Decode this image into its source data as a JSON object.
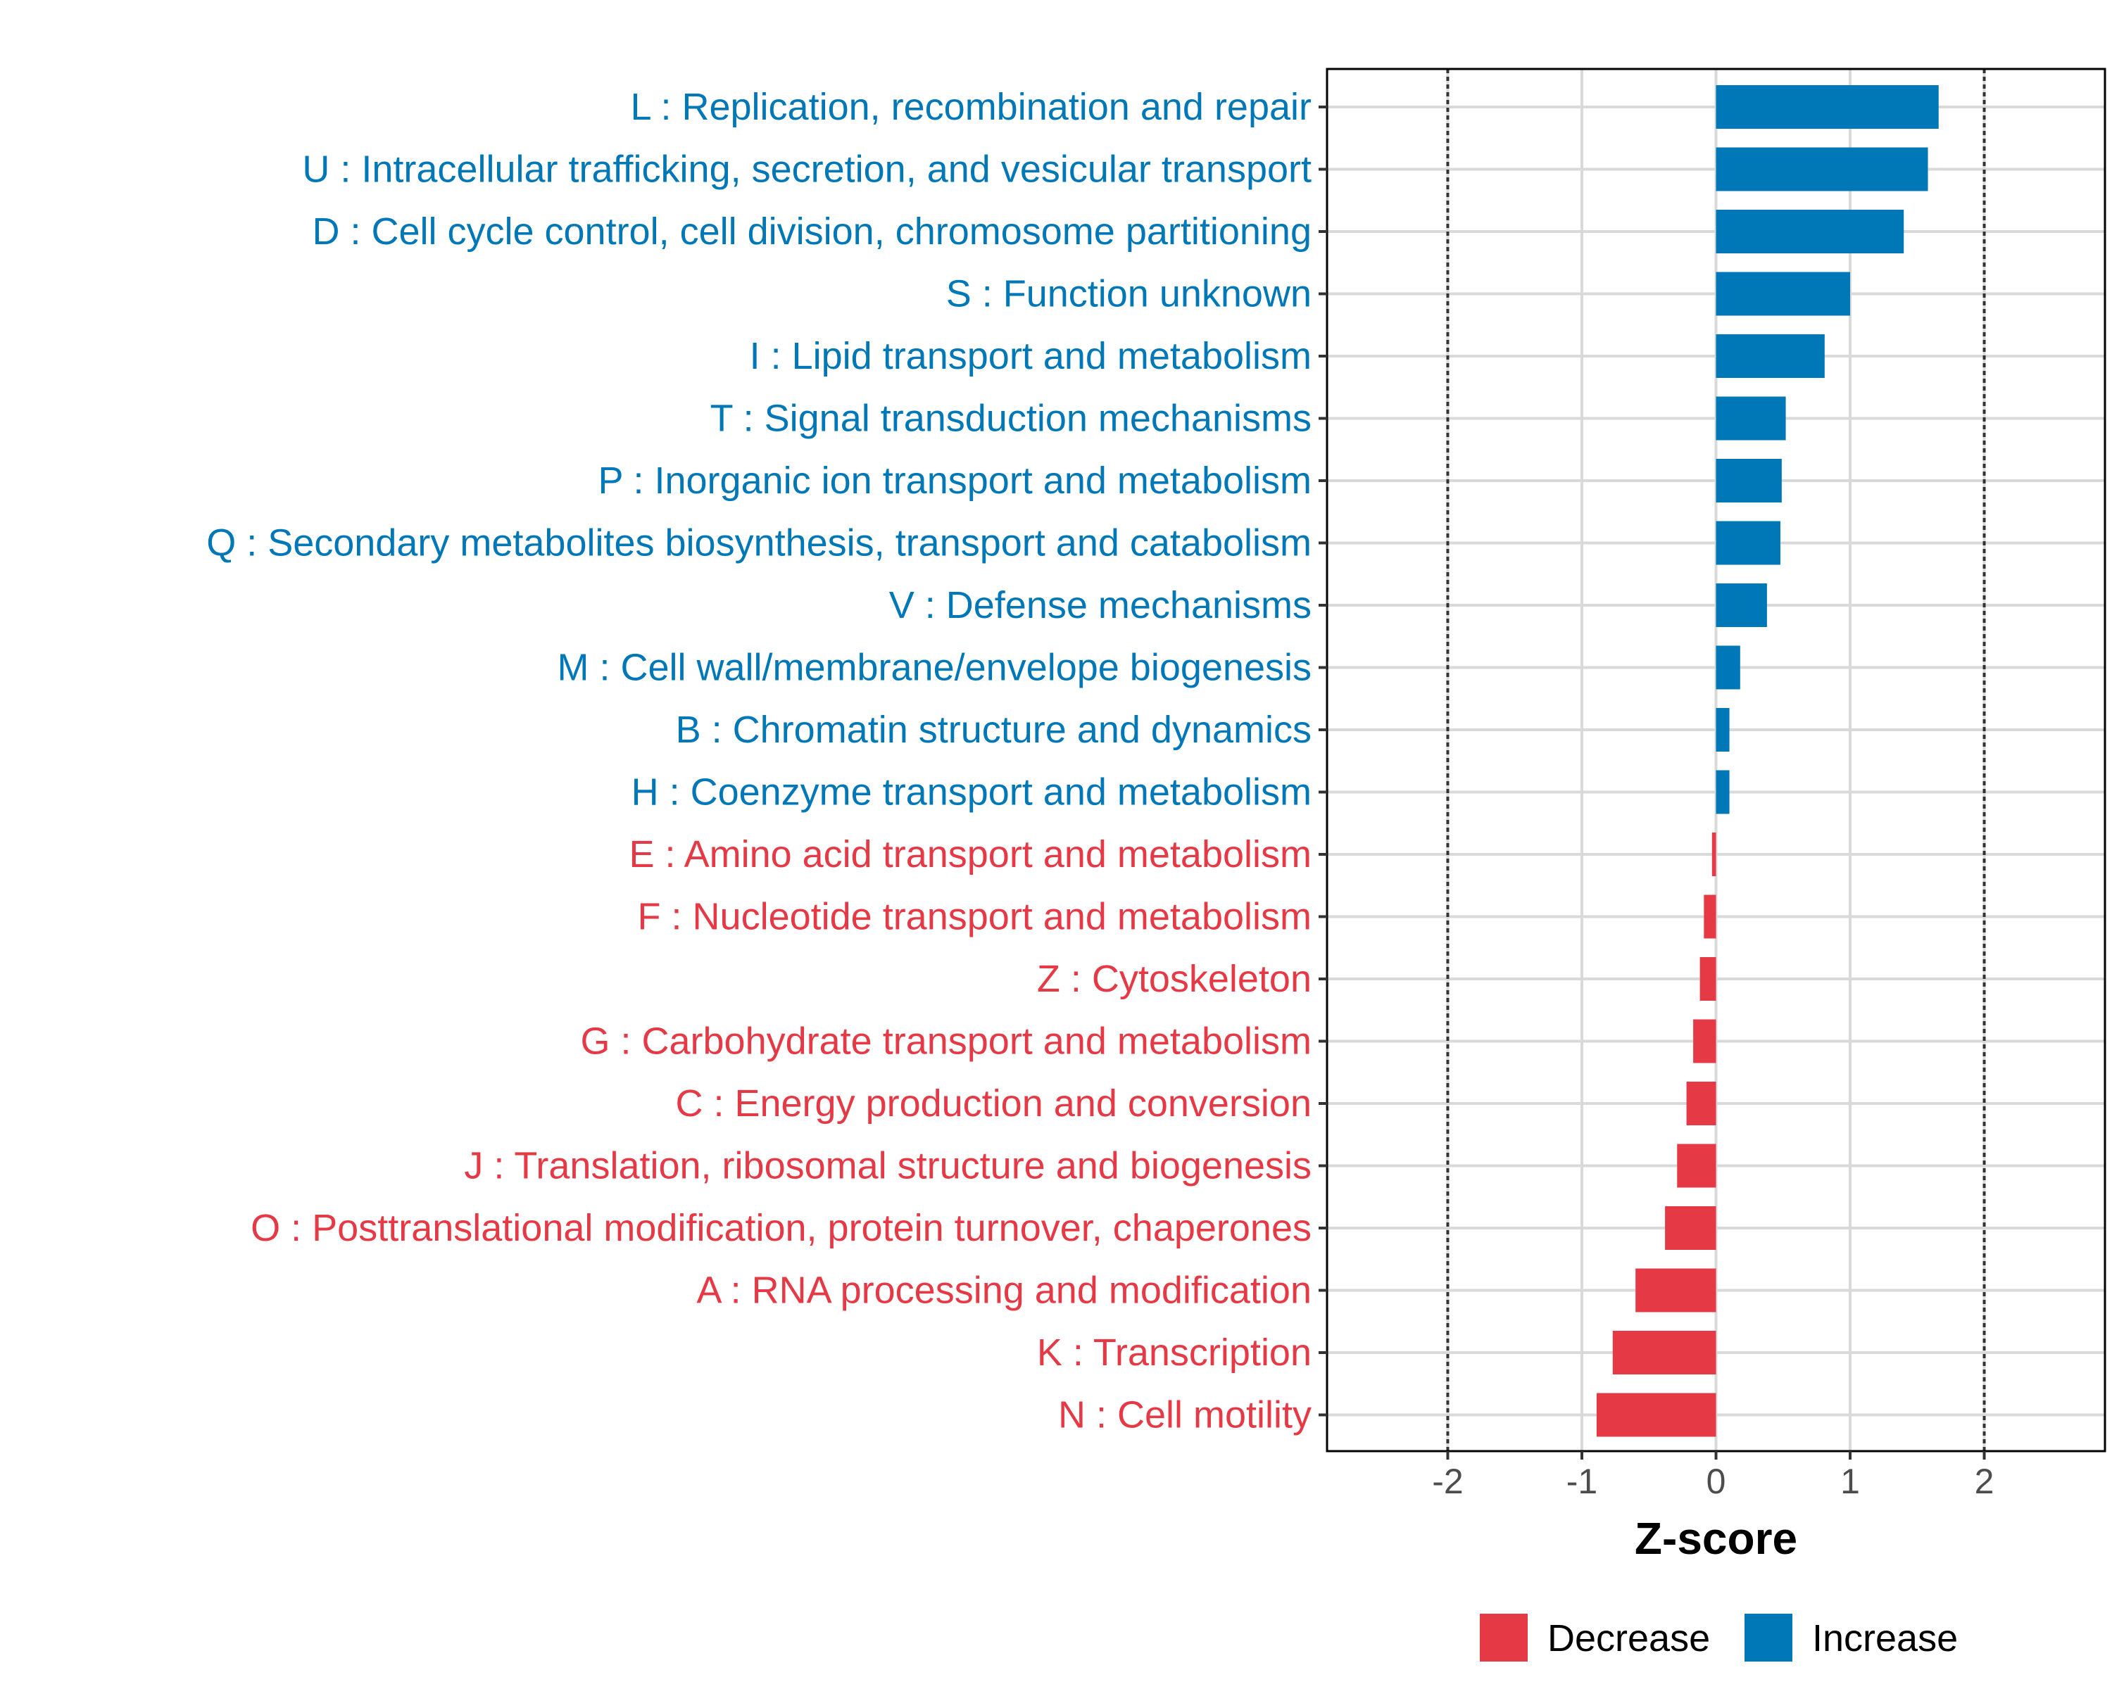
{
  "chart_data": {
    "type": "bar",
    "orientation": "horizontal",
    "title": "",
    "xlabel": "Z-score",
    "ylabel": "",
    "xlim": [
      -2.9,
      2.9
    ],
    "x_ticks": [
      -2,
      -1,
      0,
      1,
      2
    ],
    "x_tick_labels": [
      "-2",
      "-1",
      "0",
      "1",
      "2"
    ],
    "reference_lines": [
      -2,
      2
    ],
    "grid": true,
    "legend": {
      "position": "bottom",
      "entries": [
        {
          "label": "Decrease",
          "color": "#e63946"
        },
        {
          "label": "Increase",
          "color": "#0077b6"
        }
      ]
    },
    "colors": {
      "Decrease": "#e63946",
      "Increase": "#0077b6"
    },
    "categories": [
      "L : Replication, recombination and repair",
      "U : Intracellular trafficking, secretion, and vesicular transport",
      "D : Cell cycle control, cell division, chromosome partitioning",
      "S : Function unknown",
      "I : Lipid transport and metabolism",
      "T : Signal transduction mechanisms",
      "P : Inorganic ion transport and metabolism",
      "Q : Secondary metabolites biosynthesis, transport and catabolism",
      "V : Defense mechanisms",
      "M : Cell wall/membrane/envelope biogenesis",
      "B : Chromatin structure and dynamics",
      "H : Coenzyme transport and metabolism",
      "E : Amino acid transport and metabolism",
      "F : Nucleotide transport and metabolism",
      "Z : Cytoskeleton",
      "G : Carbohydrate transport and metabolism",
      "C : Energy production and conversion",
      "J : Translation, ribosomal structure and biogenesis",
      "O : Posttranslational modification, protein turnover, chaperones",
      "A : RNA processing and modification",
      "K : Transcription",
      "N : Cell motility"
    ],
    "values": [
      1.66,
      1.58,
      1.4,
      1.0,
      0.81,
      0.52,
      0.49,
      0.48,
      0.38,
      0.18,
      0.1,
      0.1,
      -0.03,
      -0.09,
      -0.12,
      -0.17,
      -0.22,
      -0.29,
      -0.38,
      -0.6,
      -0.77,
      -0.89
    ],
    "groups": [
      "Increase",
      "Increase",
      "Increase",
      "Increase",
      "Increase",
      "Increase",
      "Increase",
      "Increase",
      "Increase",
      "Increase",
      "Increase",
      "Increase",
      "Decrease",
      "Decrease",
      "Decrease",
      "Decrease",
      "Decrease",
      "Decrease",
      "Decrease",
      "Decrease",
      "Decrease",
      "Decrease"
    ]
  }
}
